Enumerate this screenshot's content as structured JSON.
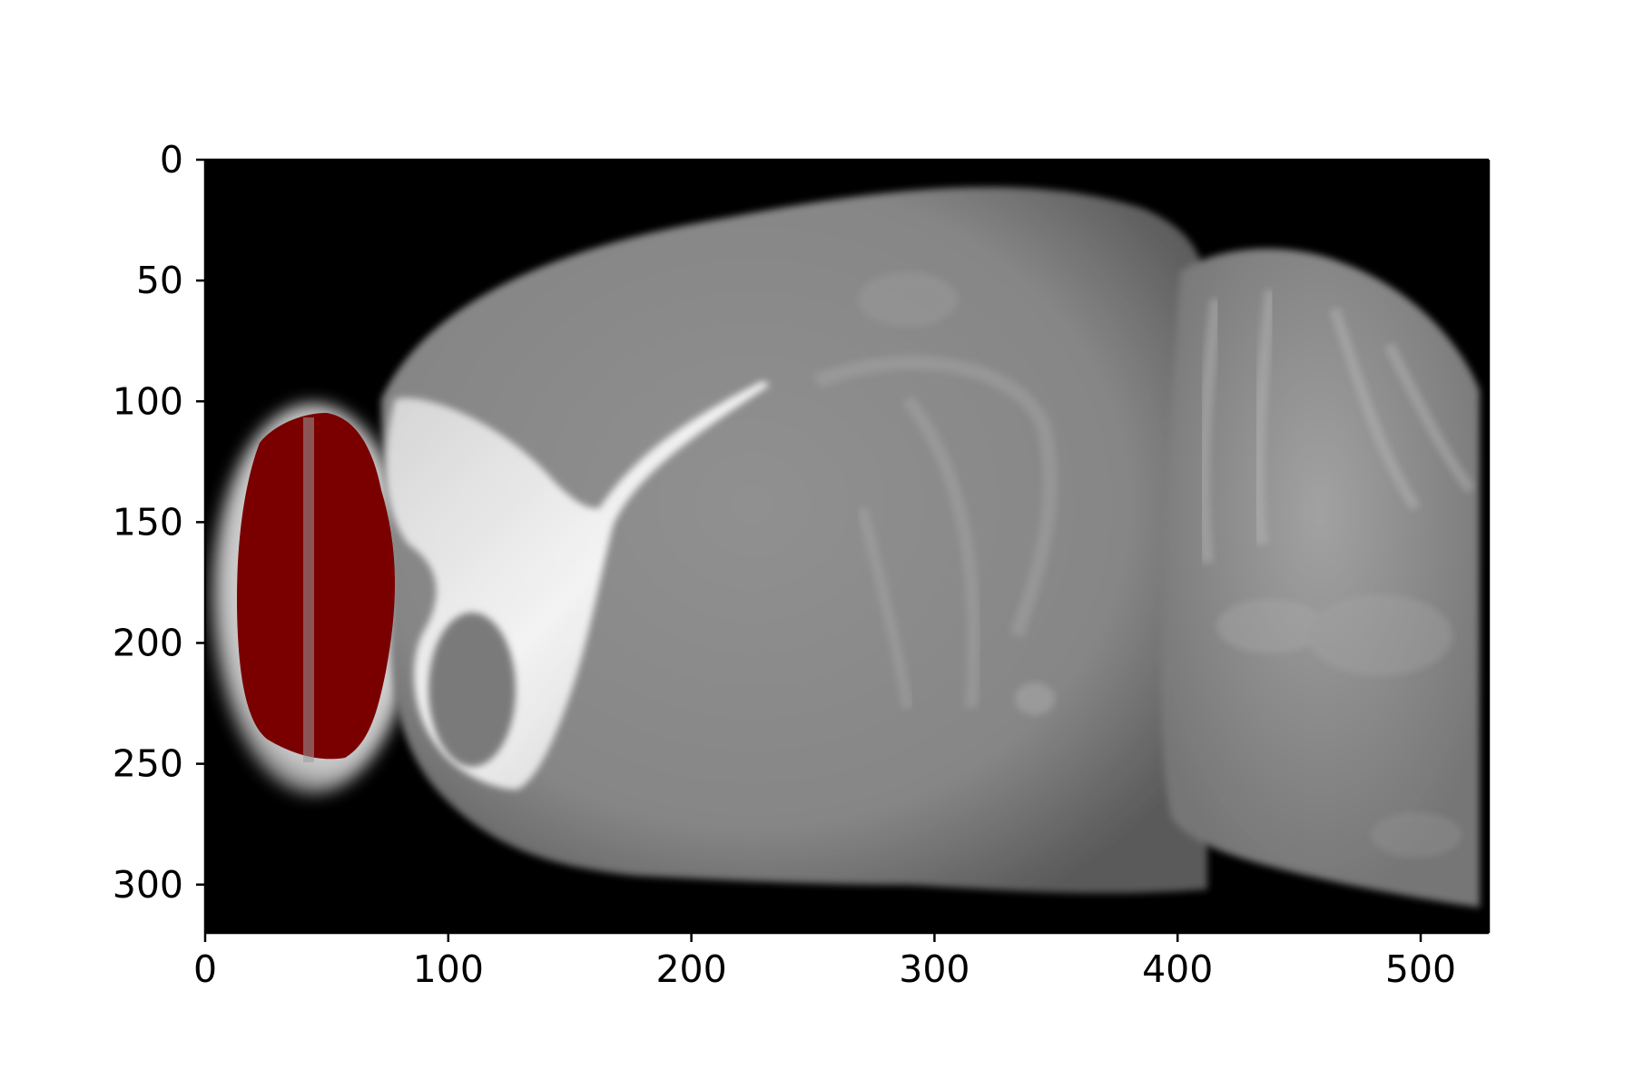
{
  "figure": {
    "background": "#ffffff",
    "image_background": "#000000",
    "tissue_color": "#8a8a8a",
    "highlight_color": "#ffffff",
    "overlay_color": "#7a0000",
    "overlay_region": "olfactory-bulb"
  },
  "axes": {
    "x_ticks": [
      "0",
      "100",
      "200",
      "300",
      "400",
      "500"
    ],
    "y_ticks": [
      "0",
      "50",
      "100",
      "150",
      "200",
      "250",
      "300"
    ],
    "x_range": [
      0,
      528
    ],
    "y_range": [
      320,
      0
    ],
    "x_tick_values": [
      0,
      100,
      200,
      300,
      400,
      500
    ],
    "y_tick_values": [
      0,
      50,
      100,
      150,
      200,
      250,
      300
    ],
    "y_inverted": true,
    "grid": false
  }
}
